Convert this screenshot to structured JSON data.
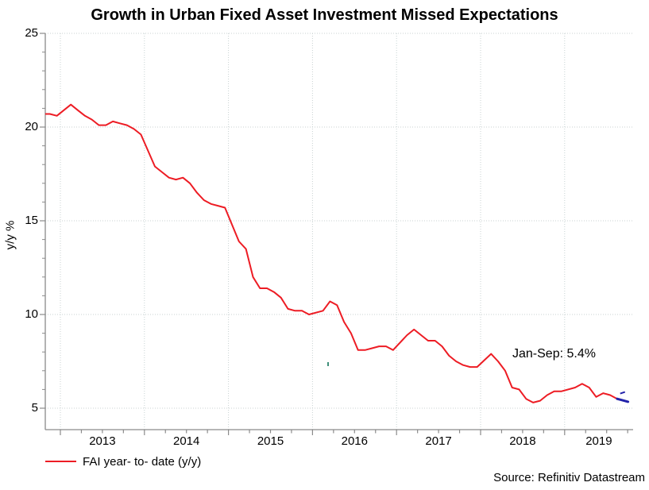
{
  "chart_data": {
    "type": "line",
    "title": "Growth in Urban Fixed Asset Investment Missed Expectations",
    "ylabel": "y/y %",
    "y_ticks": [
      25,
      20,
      15,
      10,
      5
    ],
    "y_minor_step": 1,
    "ylim": [
      5,
      25
    ],
    "x_year_labels": [
      "2013",
      "2014",
      "2015",
      "2016",
      "2017",
      "2018",
      "2019"
    ],
    "grid": "dotted",
    "legend_position": "bottom-left",
    "annotation": "Jan-Sep: 5.4%",
    "source": "Source: Refinitiv Datastream",
    "colors": {
      "line_red": "#ed1c24",
      "latest_marker_navy": "#2222aa",
      "grid_dotted": "#c8d2d2",
      "axis_gray": "#8a8a8a",
      "text_black": "#000000",
      "artifact_teal": "#3f8f7a"
    },
    "series": [
      {
        "name": "FAI year- to- date (y/y)",
        "color": "#ed1c24",
        "points": [
          [
            2012,
            10,
            20.7
          ],
          [
            2012,
            11,
            20.7
          ],
          [
            2012,
            12,
            20.6
          ],
          [
            2013,
            2,
            21.2
          ],
          [
            2013,
            3,
            20.9
          ],
          [
            2013,
            4,
            20.6
          ],
          [
            2013,
            5,
            20.4
          ],
          [
            2013,
            6,
            20.1
          ],
          [
            2013,
            7,
            20.1
          ],
          [
            2013,
            8,
            20.3
          ],
          [
            2013,
            9,
            20.2
          ],
          [
            2013,
            10,
            20.1
          ],
          [
            2013,
            11,
            19.9
          ],
          [
            2013,
            12,
            19.6
          ],
          [
            2014,
            2,
            17.9
          ],
          [
            2014,
            3,
            17.6
          ],
          [
            2014,
            4,
            17.3
          ],
          [
            2014,
            5,
            17.2
          ],
          [
            2014,
            6,
            17.3
          ],
          [
            2014,
            7,
            17.0
          ],
          [
            2014,
            8,
            16.5
          ],
          [
            2014,
            9,
            16.1
          ],
          [
            2014,
            10,
            15.9
          ],
          [
            2014,
            11,
            15.8
          ],
          [
            2014,
            12,
            15.7
          ],
          [
            2015,
            2,
            13.9
          ],
          [
            2015,
            3,
            13.5
          ],
          [
            2015,
            4,
            12.0
          ],
          [
            2015,
            5,
            11.4
          ],
          [
            2015,
            6,
            11.4
          ],
          [
            2015,
            7,
            11.2
          ],
          [
            2015,
            8,
            10.9
          ],
          [
            2015,
            9,
            10.3
          ],
          [
            2015,
            10,
            10.2
          ],
          [
            2015,
            11,
            10.2
          ],
          [
            2015,
            12,
            10.0
          ],
          [
            2016,
            2,
            10.2
          ],
          [
            2016,
            3,
            10.7
          ],
          [
            2016,
            4,
            10.5
          ],
          [
            2016,
            5,
            9.6
          ],
          [
            2016,
            6,
            9.0
          ],
          [
            2016,
            7,
            8.1
          ],
          [
            2016,
            8,
            8.1
          ],
          [
            2016,
            9,
            8.2
          ],
          [
            2016,
            10,
            8.3
          ],
          [
            2016,
            11,
            8.3
          ],
          [
            2016,
            12,
            8.1
          ],
          [
            2017,
            2,
            8.9
          ],
          [
            2017,
            3,
            9.2
          ],
          [
            2017,
            4,
            8.9
          ],
          [
            2017,
            5,
            8.6
          ],
          [
            2017,
            6,
            8.6
          ],
          [
            2017,
            7,
            8.3
          ],
          [
            2017,
            8,
            7.8
          ],
          [
            2017,
            9,
            7.5
          ],
          [
            2017,
            10,
            7.3
          ],
          [
            2017,
            11,
            7.2
          ],
          [
            2017,
            12,
            7.2
          ],
          [
            2018,
            2,
            7.9
          ],
          [
            2018,
            3,
            7.5
          ],
          [
            2018,
            4,
            7.0
          ],
          [
            2018,
            5,
            6.1
          ],
          [
            2018,
            6,
            6.0
          ],
          [
            2018,
            7,
            5.5
          ],
          [
            2018,
            8,
            5.3
          ],
          [
            2018,
            9,
            5.4
          ],
          [
            2018,
            10,
            5.7
          ],
          [
            2018,
            11,
            5.9
          ],
          [
            2018,
            12,
            5.9
          ],
          [
            2019,
            2,
            6.1
          ],
          [
            2019,
            3,
            6.3
          ],
          [
            2019,
            4,
            6.1
          ],
          [
            2019,
            5,
            5.6
          ],
          [
            2019,
            6,
            5.8
          ],
          [
            2019,
            7,
            5.7
          ],
          [
            2019,
            8,
            5.5
          ],
          [
            2019,
            9,
            5.4
          ]
        ]
      }
    ]
  }
}
